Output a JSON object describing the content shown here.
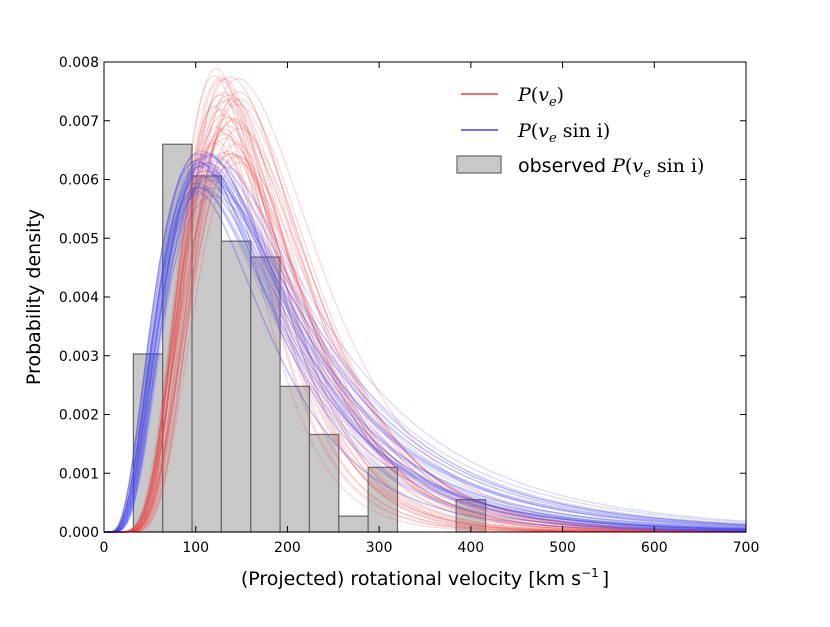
{
  "chart_data": {
    "type": "histogram_with_curves",
    "title": "",
    "xlabel": "(Projected) rotational velocity [km s",
    "xlabel_sup": "−1",
    "xlabel_tail": "]",
    "ylabel": "Probability density",
    "xlim": [
      0,
      700
    ],
    "ylim": [
      0,
      0.008
    ],
    "xticks": [
      "0",
      "100",
      "200",
      "300",
      "400",
      "500",
      "600",
      "700"
    ],
    "xtick_values": [
      0,
      100,
      200,
      300,
      400,
      500,
      600,
      700
    ],
    "yticks": [
      "0.000",
      "0.001",
      "0.002",
      "0.003",
      "0.004",
      "0.005",
      "0.006",
      "0.007",
      "0.008"
    ],
    "ytick_values": [
      0,
      0.001,
      0.002,
      0.003,
      0.004,
      0.005,
      0.006,
      0.007,
      0.008
    ],
    "histogram": {
      "name": "observed P(v_e sin i)",
      "color": "#c8c8c8",
      "edge": "#666666",
      "bins": [
        {
          "x0": 32,
          "x1": 64,
          "value": 0.00303
        },
        {
          "x0": 64,
          "x1": 96,
          "value": 0.0066
        },
        {
          "x0": 96,
          "x1": 128,
          "value": 0.00606
        },
        {
          "x0": 128,
          "x1": 160,
          "value": 0.00495
        },
        {
          "x0": 160,
          "x1": 192,
          "value": 0.00468
        },
        {
          "x0": 192,
          "x1": 224,
          "value": 0.00248
        },
        {
          "x0": 224,
          "x1": 256,
          "value": 0.00166
        },
        {
          "x0": 256,
          "x1": 288,
          "value": 0.00027
        },
        {
          "x0": 288,
          "x1": 320,
          "value": 0.0011
        },
        {
          "x0": 384,
          "x1": 416,
          "value": 0.00055
        }
      ]
    },
    "series": [
      {
        "name": "P(v_e)",
        "color": "#ee4444",
        "samples": 40,
        "mode_range": [
          120,
          150
        ],
        "peak_range": [
          0.0062,
          0.0079
        ]
      },
      {
        "name": "P(v_e sin i)",
        "color": "#4444ee",
        "samples": 40,
        "mode_range": [
          100,
          120
        ],
        "peak_range": [
          0.0057,
          0.0065
        ]
      }
    ],
    "legend": {
      "position": "top-right",
      "entries": [
        {
          "kind": "line",
          "color": "#ee4444",
          "main": "P",
          "open": "(",
          "var": "v",
          "sub": "e",
          "rest": "",
          "close": ")",
          "prefix": ""
        },
        {
          "kind": "line",
          "color": "#4444ee",
          "main": "P",
          "open": "(",
          "var": "v",
          "sub": "e",
          "rest": " sin i",
          "close": ")",
          "prefix": ""
        },
        {
          "kind": "patch",
          "color": "#c8c8c8",
          "main": "P",
          "open": "(",
          "var": "v",
          "sub": "e",
          "rest": " sin i",
          "close": ")",
          "prefix": "observed "
        }
      ]
    },
    "grid": false
  }
}
